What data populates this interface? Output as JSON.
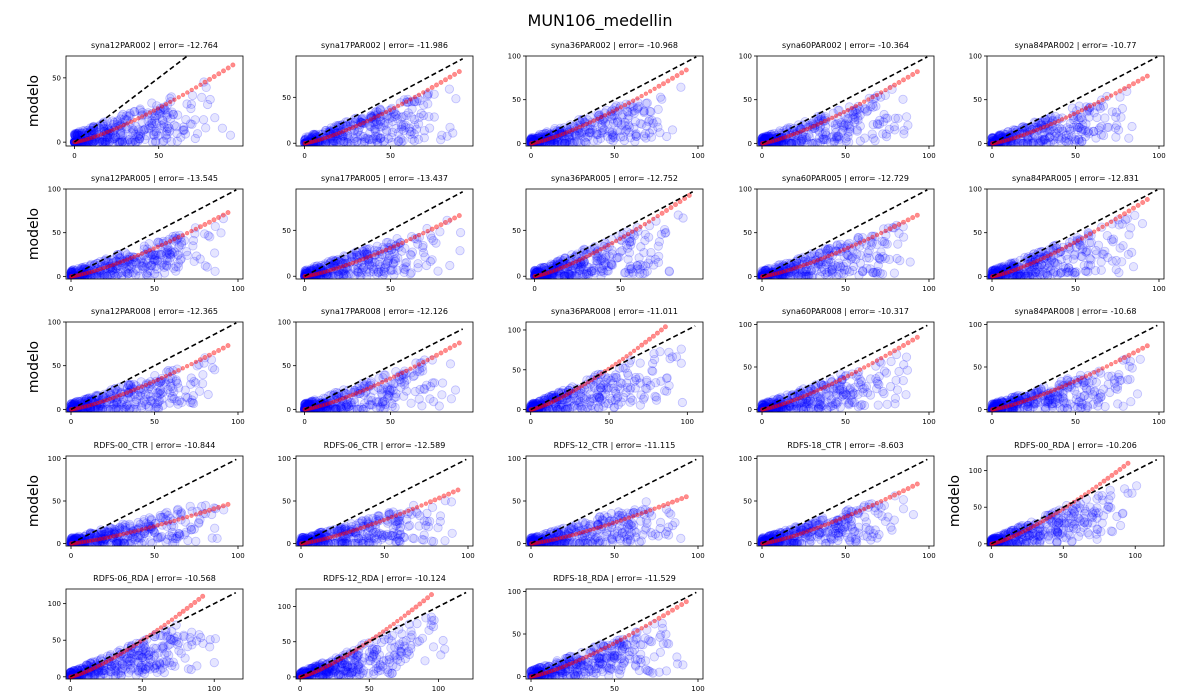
{
  "figure": {
    "suptitle": "MUN106_medellin",
    "row_ylabel": "modelo"
  },
  "colors": {
    "scatter": "#0000ff",
    "quantile": "#ff0000",
    "diagonal": "#000000"
  },
  "chart_data": [
    {
      "type": "scatter",
      "title": "syna12PAR002 | error= -12.764",
      "ylabel": "modelo",
      "xticks": [
        0,
        50
      ],
      "yticks": [
        0,
        50
      ],
      "xlim": [
        -5,
        100
      ],
      "ylim": [
        -3,
        67
      ],
      "diag_max": 94,
      "points": 360,
      "spread": [
        0,
        95,
        0,
        60
      ],
      "q_end": [
        94,
        60
      ],
      "seed": 11
    },
    {
      "type": "scatter",
      "title": "syna17PAR002 | error= -11.986",
      "ylabel": "",
      "xticks": [
        0,
        50
      ],
      "yticks": [
        0,
        50
      ],
      "xlim": [
        -5,
        98
      ],
      "ylim": [
        -3,
        95
      ],
      "diag_max": 92,
      "points": 360,
      "spread": [
        0,
        92,
        0,
        78
      ],
      "q_end": [
        90,
        78
      ],
      "seed": 12
    },
    {
      "type": "scatter",
      "title": "syna36PAR002 | error= -10.968",
      "ylabel": "",
      "xticks": [
        0,
        50,
        100
      ],
      "yticks": [
        0,
        50,
        100
      ],
      "xlim": [
        -3,
        103
      ],
      "ylim": [
        -3,
        100
      ],
      "diag_max": 99,
      "points": 360,
      "spread": [
        0,
        95,
        0,
        82
      ],
      "q_end": [
        93,
        84
      ],
      "seed": 13
    },
    {
      "type": "scatter",
      "title": "syna60PAR002 | error= -10.364",
      "ylabel": "",
      "xticks": [
        0,
        50,
        100
      ],
      "yticks": [
        0,
        50,
        100
      ],
      "xlim": [
        -3,
        103
      ],
      "ylim": [
        -3,
        100
      ],
      "diag_max": 99,
      "points": 360,
      "spread": [
        0,
        95,
        0,
        82
      ],
      "q_end": [
        93,
        82
      ],
      "seed": 14
    },
    {
      "type": "scatter",
      "title": "syna84PAR002 | error= -10.77",
      "ylabel": "",
      "xticks": [
        0,
        50,
        100
      ],
      "yticks": [
        0,
        50,
        100
      ],
      "xlim": [
        -3,
        103
      ],
      "ylim": [
        -3,
        100
      ],
      "diag_max": 99,
      "points": 360,
      "spread": [
        0,
        95,
        0,
        80
      ],
      "q_end": [
        93,
        77
      ],
      "seed": 15
    },
    {
      "type": "scatter",
      "title": "syna12PAR005 | error= -13.545",
      "ylabel": "modelo",
      "xticks": [
        0,
        50,
        100
      ],
      "yticks": [
        0,
        50,
        100
      ],
      "xlim": [
        -3,
        103
      ],
      "ylim": [
        -3,
        100
      ],
      "diag_max": 99,
      "points": 360,
      "spread": [
        0,
        95,
        0,
        75
      ],
      "q_end": [
        94,
        73
      ],
      "seed": 21
    },
    {
      "type": "scatter",
      "title": "syna17PAR005 | error= -13.437",
      "ylabel": "",
      "xticks": [
        0,
        50
      ],
      "yticks": [
        0,
        50
      ],
      "xlim": [
        -5,
        98
      ],
      "ylim": [
        -3,
        95
      ],
      "diag_max": 92,
      "points": 360,
      "spread": [
        0,
        92,
        0,
        75
      ],
      "q_end": [
        90,
        66
      ],
      "seed": 22
    },
    {
      "type": "scatter",
      "title": "syna36PAR005 | error= -12.752",
      "ylabel": "",
      "xticks": [
        0,
        50
      ],
      "yticks": [
        0,
        50
      ],
      "xlim": [
        -5,
        98
      ],
      "ylim": [
        -3,
        95
      ],
      "diag_max": 92,
      "points": 360,
      "spread": [
        0,
        92,
        0,
        88
      ],
      "q_end": [
        90,
        88
      ],
      "seed": 23
    },
    {
      "type": "scatter",
      "title": "syna60PAR005 | error= -12.729",
      "ylabel": "",
      "xticks": [
        0,
        50,
        100
      ],
      "yticks": [
        0,
        50,
        100
      ],
      "xlim": [
        -3,
        103
      ],
      "ylim": [
        -3,
        100
      ],
      "diag_max": 99,
      "points": 360,
      "spread": [
        0,
        95,
        0,
        75
      ],
      "q_end": [
        93,
        70
      ],
      "seed": 24
    },
    {
      "type": "scatter",
      "title": "syna84PAR005 | error= -12.831",
      "ylabel": "",
      "xticks": [
        0,
        50,
        100
      ],
      "yticks": [
        0,
        50,
        100
      ],
      "xlim": [
        -3,
        103
      ],
      "ylim": [
        -3,
        100
      ],
      "diag_max": 99,
      "points": 360,
      "spread": [
        0,
        95,
        0,
        88
      ],
      "q_end": [
        93,
        88
      ],
      "seed": 25
    },
    {
      "type": "scatter",
      "title": "syna12PAR008 | error= -12.365",
      "ylabel": "modelo",
      "xticks": [
        0,
        50,
        100
      ],
      "yticks": [
        0,
        50,
        100
      ],
      "xlim": [
        -3,
        103
      ],
      "ylim": [
        -3,
        100
      ],
      "diag_max": 99,
      "points": 360,
      "spread": [
        0,
        95,
        0,
        75
      ],
      "q_end": [
        94,
        73
      ],
      "seed": 31
    },
    {
      "type": "scatter",
      "title": "syna17PAR008 | error= -12.126",
      "ylabel": "",
      "xticks": [
        0,
        50
      ],
      "yticks": [
        0,
        50,
        100
      ],
      "xlim": [
        -5,
        98
      ],
      "ylim": [
        -3,
        100
      ],
      "diag_max": 92,
      "points": 360,
      "spread": [
        0,
        92,
        0,
        80
      ],
      "q_end": [
        90,
        76
      ],
      "seed": 32
    },
    {
      "type": "scatter",
      "title": "syna36PAR008 | error= -11.011",
      "ylabel": "",
      "xticks": [
        0,
        50,
        100
      ],
      "yticks": [
        0,
        50,
        100
      ],
      "xlim": [
        -3,
        110
      ],
      "ylim": [
        -3,
        110
      ],
      "diag_max": 105,
      "points": 360,
      "spread": [
        0,
        100,
        0,
        105
      ],
      "q_end": [
        86,
        104
      ],
      "seed": 33
    },
    {
      "type": "scatter",
      "title": "syna60PAR008 | error= -10.317",
      "ylabel": "",
      "xticks": [
        0,
        50,
        100
      ],
      "yticks": [
        0,
        50,
        100
      ],
      "xlim": [
        -3,
        103
      ],
      "ylim": [
        -3,
        103
      ],
      "diag_max": 99,
      "points": 360,
      "spread": [
        0,
        95,
        0,
        85
      ],
      "q_end": [
        93,
        85
      ],
      "seed": 34
    },
    {
      "type": "scatter",
      "title": "syna84PAR008 | error= -10.68",
      "ylabel": "",
      "xticks": [
        0,
        50,
        100
      ],
      "yticks": [
        0,
        50,
        100
      ],
      "xlim": [
        -3,
        103
      ],
      "ylim": [
        -3,
        103
      ],
      "diag_max": 99,
      "points": 360,
      "spread": [
        0,
        95,
        0,
        75
      ],
      "q_end": [
        93,
        75
      ],
      "seed": 35
    },
    {
      "type": "scatter",
      "title": "RDFS-00_CTR | error= -10.844",
      "ylabel": "modelo",
      "xticks": [
        0,
        50,
        100
      ],
      "yticks": [
        0,
        50,
        100
      ],
      "xlim": [
        -3,
        103
      ],
      "ylim": [
        -3,
        103
      ],
      "diag_max": 99,
      "points": 360,
      "spread": [
        0,
        95,
        0,
        60
      ],
      "q_end": [
        94,
        46
      ],
      "seed": 41
    },
    {
      "type": "scatter",
      "title": "RDFS-06_CTR | error= -12.589",
      "ylabel": "",
      "xticks": [
        0,
        50,
        100
      ],
      "yticks": [
        0,
        50,
        100
      ],
      "xlim": [
        -3,
        103
      ],
      "ylim": [
        -3,
        103
      ],
      "diag_max": 99,
      "points": 360,
      "spread": [
        0,
        95,
        0,
        65
      ],
      "q_end": [
        94,
        63
      ],
      "seed": 42
    },
    {
      "type": "scatter",
      "title": "RDFS-12_CTR | error= -11.115",
      "ylabel": "",
      "xticks": [
        0,
        50,
        100
      ],
      "yticks": [
        0,
        50,
        100
      ],
      "xlim": [
        -3,
        103
      ],
      "ylim": [
        -3,
        103
      ],
      "diag_max": 99,
      "points": 360,
      "spread": [
        0,
        95,
        0,
        70
      ],
      "q_end": [
        93,
        55
      ],
      "seed": 43
    },
    {
      "type": "scatter",
      "title": "RDFS-18_CTR | error= -8.603",
      "ylabel": "",
      "xticks": [
        0,
        50,
        100
      ],
      "yticks": [
        0,
        50,
        100
      ],
      "xlim": [
        -3,
        103
      ],
      "ylim": [
        -3,
        103
      ],
      "diag_max": 99,
      "points": 360,
      "spread": [
        0,
        95,
        0,
        75
      ],
      "q_end": [
        93,
        70
      ],
      "seed": 44
    },
    {
      "type": "scatter",
      "title": "RDFS-00_RDA | error= -10.206",
      "ylabel": "modelo",
      "xticks": [
        0,
        50,
        100
      ],
      "yticks": [
        0,
        50,
        100
      ],
      "xlim": [
        -3,
        120
      ],
      "ylim": [
        -3,
        120
      ],
      "diag_max": 115,
      "points": 360,
      "spread": [
        0,
        105,
        0,
        110
      ],
      "q_end": [
        95,
        110
      ],
      "seed": 51
    },
    {
      "type": "scatter",
      "title": "RDFS-06_RDA | error= -10.568",
      "ylabel": "",
      "xticks": [
        0,
        50,
        100
      ],
      "yticks": [
        0,
        50,
        100
      ],
      "xlim": [
        -3,
        120
      ],
      "ylim": [
        -3,
        120
      ],
      "diag_max": 115,
      "points": 360,
      "spread": [
        0,
        105,
        0,
        110
      ],
      "q_end": [
        92,
        110
      ],
      "seed": 52
    },
    {
      "type": "scatter",
      "title": "RDFS-12_RDA | error= -10.124",
      "ylabel": "",
      "xticks": [
        0,
        50,
        100
      ],
      "yticks": [
        0,
        50,
        100
      ],
      "xlim": [
        -3,
        125
      ],
      "ylim": [
        -3,
        125
      ],
      "diag_max": 120,
      "points": 360,
      "spread": [
        0,
        110,
        0,
        115
      ],
      "q_end": [
        95,
        117
      ],
      "seed": 53
    },
    {
      "type": "scatter",
      "title": "RDFS-18_RDA | error= -11.529",
      "ylabel": "",
      "xticks": [
        0,
        50,
        100
      ],
      "yticks": [
        0,
        50,
        100
      ],
      "xlim": [
        -3,
        103
      ],
      "ylim": [
        -3,
        103
      ],
      "diag_max": 99,
      "points": 360,
      "spread": [
        0,
        95,
        0,
        88
      ],
      "q_end": [
        93,
        88
      ],
      "seed": 54
    }
  ]
}
